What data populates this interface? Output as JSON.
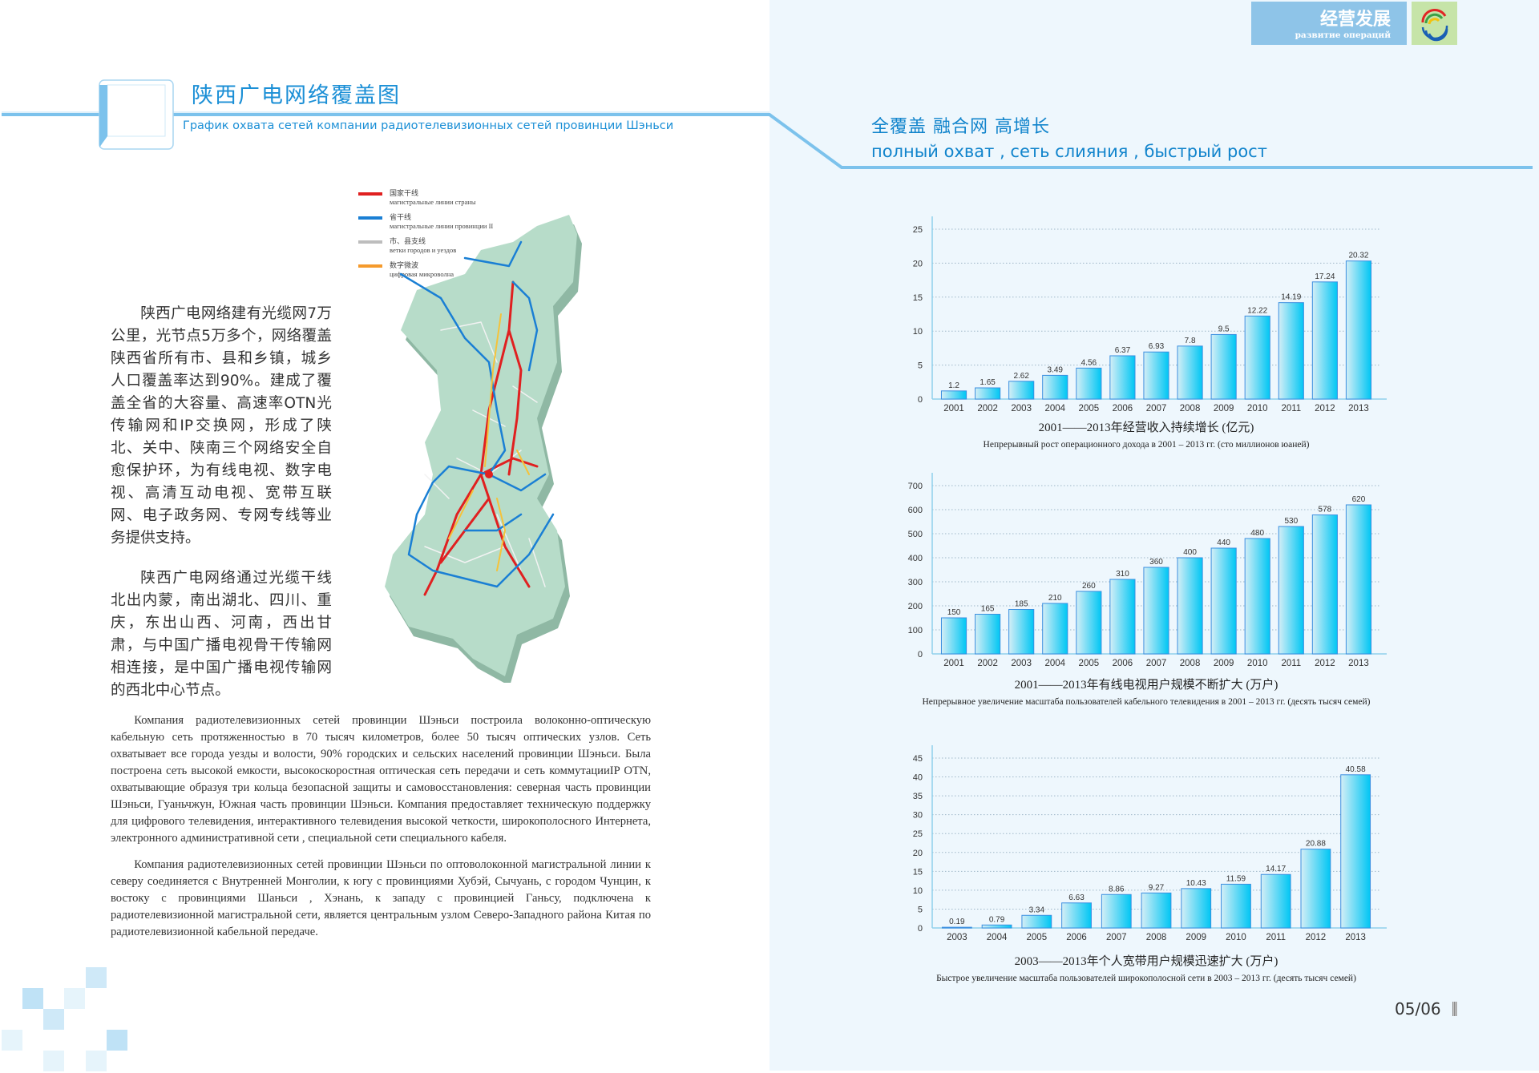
{
  "header": {
    "title_cn": "陕西广电网络覆盖图",
    "title_ru": "График охвата сетей компании радиотелевизионных сетей провинции Шэньси"
  },
  "section_badge": {
    "title_cn": "经营发展",
    "title_ru": "развитие операций",
    "logo_icon": "company-swirl-logo"
  },
  "tagline": {
    "cn": "全覆盖  融合网  高增长",
    "ru": "полный охват , сеть слияния ,  быстрый рост"
  },
  "map": {
    "legend": [
      {
        "cn": "国家干线",
        "ru": "магистральные линии страны",
        "color": "#e02020"
      },
      {
        "cn": "省干线",
        "ru": "магистральные линии провинции II",
        "color": "#1a7fd4"
      },
      {
        "cn": "市、县支线",
        "ru": "ветки городов и уездов",
        "color": "#bdbdbd"
      },
      {
        "cn": "数字微波",
        "ru": "цифровая микроволна",
        "color": "#f59a2c"
      }
    ],
    "land_color": "#b7dcc9"
  },
  "body_cn": [
    "陕西广电网络建有光缆网7万公里，光节点5万多个，网络覆盖陕西省所有市、县和乡镇，城乡人口覆盖率达到90%。建成了覆盖全省的大容量、高速率OTN光传输网和IP交换网，形成了陕北、关中、陕南三个网络安全自愈保护环，为有线电视、数字电视、高清互动电视、宽带互联网、电子政务网、专网专线等业务提供支持。",
    "陕西广电网络通过光缆干线北出内蒙，南出湖北、四川、重庆，东出山西、河南，西出甘肃，与中国广播电视骨干传输网相连接，是中国广播电视传输网的西北中心节点。"
  ],
  "body_ru": [
    "Компания радиотелевизионных сетей провинции Шэньси построила волоконно-оптическую кабельную сеть протяженностью в 70 тысяч километров, более 50 тысяч оптических узлов. Сеть охватывает все города уезды и волости, 90% городских и сельских населений провинции Шэньси. Была построена сеть высокой емкости, высокоскоростная оптическая сеть передачи и сеть коммутацииIP OTN, охватывающие образуя три кольца безопасной защиты и самовосстановления: северная часть провинции Шэньси, Гуаньчжун, Южная часть провинции Шэньси. Компания предоставляет техническую поддержку для цифрового телевидения, интерактивного телевидения высокой четкости, широкополосного Интернета, электронного административной сети , специальной сети специального кабеля.",
    "Компания радиотелевизионных сетей провинции Шэньси по оптоволоконной магистральной линии к северу соединяется с Внутренней Монголии, к югу с провинциями Хубэй, Сычуань, с городом Чунцин, к востоку с провинциями Шаньси , Хэнань, к западу с провинцией Ганьсу, подключена к радиотелевизионной магистральной сети,  является центральным узлом Северо-Западного района Китая по радиотелевизионной кабельной передаче."
  ],
  "chart_data": [
    {
      "type": "bar",
      "title": "2001——2013年经营收入持续增长  (亿元)",
      "subtitle": "Непрерывный рост операционного дохода в 2001 – 2013 гг.   (сто миллионов юаней)",
      "categories": [
        "2001",
        "2002",
        "2003",
        "2004",
        "2005",
        "2006",
        "2007",
        "2008",
        "2009",
        "2010",
        "2011",
        "2012",
        "2013"
      ],
      "values": [
        1.2,
        1.65,
        2.62,
        3.49,
        4.56,
        6.37,
        6.93,
        7.8,
        9.5,
        12.22,
        14.19,
        17.24,
        20.32
      ],
      "value_labels": [
        "1.2",
        "1.65",
        "2.62",
        "3.49",
        "4.56",
        "6.37",
        "6.93",
        "7.8",
        "9.5",
        "12.22",
        "14.19",
        "17.24",
        "20.32"
      ],
      "yticks": [
        0,
        5,
        10,
        15,
        20,
        25
      ],
      "ylim": [
        0,
        25
      ],
      "grid": true,
      "bar_color": "#00c6f4"
    },
    {
      "type": "bar",
      "title": "2001——2013年有线电视用户规模不断扩大  (万户)",
      "subtitle": "Непрерывное увеличение масштаба пользователей кабельного телевидения в 2001 – 2013 гг. (десять тысяч семей)",
      "categories": [
        "2001",
        "2002",
        "2003",
        "2004",
        "2005",
        "2006",
        "2007",
        "2008",
        "2009",
        "2010",
        "2011",
        "2012",
        "2013"
      ],
      "values": [
        150,
        165,
        185,
        210,
        260,
        310,
        360,
        400,
        440,
        480,
        530,
        578,
        620
      ],
      "value_labels": [
        "150",
        "165",
        "185",
        "210",
        "260",
        "310",
        "360",
        "400",
        "440",
        "480",
        "530",
        "578",
        "620"
      ],
      "yticks": [
        0,
        100,
        200,
        300,
        400,
        500,
        600,
        700
      ],
      "ylim": [
        0,
        700
      ],
      "grid": true,
      "bar_color": "#00c6f4"
    },
    {
      "type": "bar",
      "title": "2003——2013年个人宽带用户规模迅速扩大  (万户)",
      "subtitle": "Быстрое увеличение масштаба пользователей широкополосной сети в 2003 – 2013 гг.   (десять тысяч семей)",
      "categories": [
        "2003",
        "2004",
        "2005",
        "2006",
        "2007",
        "2008",
        "2009",
        "2010",
        "2011",
        "2012",
        "2013"
      ],
      "values": [
        0.19,
        0.79,
        3.34,
        6.63,
        8.86,
        9.27,
        10.43,
        11.59,
        14.17,
        20.88,
        40.58
      ],
      "value_labels": [
        "0.19",
        "0.79",
        "3.34",
        "6.63",
        "8.86",
        "9.27",
        "10.43",
        "11.59",
        "14.17",
        "20.88",
        "40.58"
      ],
      "yticks": [
        0,
        5,
        10,
        15,
        20,
        25,
        30,
        35,
        40,
        45
      ],
      "ylim": [
        0,
        45
      ],
      "grid": true,
      "bar_color": "#00c6f4"
    }
  ],
  "footer": {
    "page_number": "05/06"
  }
}
